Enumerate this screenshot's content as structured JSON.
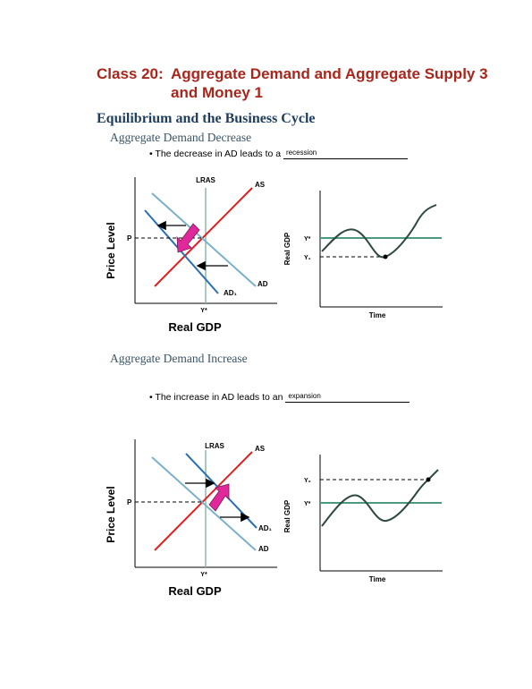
{
  "title": {
    "class_label": "Class 20:",
    "text": "Aggregate Demand and Aggregate Supply 3 and Money 1"
  },
  "section_heading": "Equilibrium and the Business Cycle",
  "decrease": {
    "heading": "Aggregate Demand Decrease",
    "bullet": "The decrease in AD leads to a",
    "answer": "recession",
    "ad_graph": {
      "ylabel": "Price Level",
      "xlabel": "Real GDP",
      "lras": "LRAS",
      "as": "AS",
      "ad": "AD",
      "ad1": "AD₁",
      "p": "P",
      "ystar": "Y*"
    },
    "cycle_graph": {
      "ystar": "Y*",
      "y1": "Y₁",
      "ylabel": "Real GDP",
      "xlabel": "Time"
    }
  },
  "increase": {
    "heading": "Aggregate Demand Increase",
    "bullet": "The increase in AD leads to an",
    "answer": "expansion",
    "ad_graph": {
      "ylabel": "Price Level",
      "xlabel": "Real GDP",
      "lras": "LRAS",
      "as": "AS",
      "ad": "AD",
      "ad1": "AD₁",
      "p": "P",
      "ystar": "Y*"
    },
    "cycle_graph": {
      "ystar": "Y*",
      "y2": "Y₂",
      "ylabel": "Real GDP",
      "xlabel": "Time"
    }
  },
  "colors": {
    "title": "#a8261c",
    "heading": "#1f3e5e",
    "as_curve": "#e02020",
    "ad_light": "#7ab0c9",
    "ad_dark": "#2a6fb0",
    "lras": "#8fb8a8",
    "trend": "#4a9a7c",
    "cycle": "#2e4a3e",
    "arrow_fill": "#e0289a"
  }
}
